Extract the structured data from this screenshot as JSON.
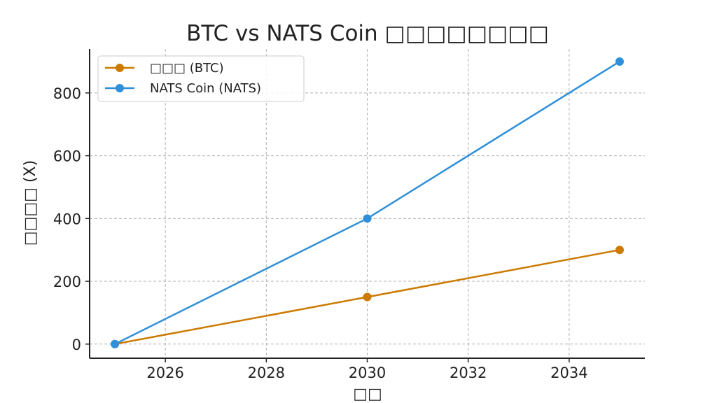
{
  "chart_data": {
    "type": "line",
    "title": "BTC vs NATS Coin □□□□□□□□",
    "xlabel": "□□",
    "ylabel": "□□□□ (X)",
    "x": [
      2025,
      2030,
      2035
    ],
    "series": [
      {
        "name": "□□□ (BTC)",
        "values": [
          0,
          150,
          300
        ],
        "color": "#cc7a00"
      },
      {
        "name": "NATS Coin (NATS)",
        "values": [
          0,
          400,
          900
        ],
        "color": "#2f8fd8"
      }
    ],
    "xlim": [
      2024.5,
      2035.5
    ],
    "ylim": [
      -45,
      940
    ],
    "xticks": [
      2026,
      2028,
      2030,
      2032,
      2034
    ],
    "yticks": [
      0,
      200,
      400,
      600,
      800
    ],
    "grid": true,
    "legend_position": "top-left"
  }
}
